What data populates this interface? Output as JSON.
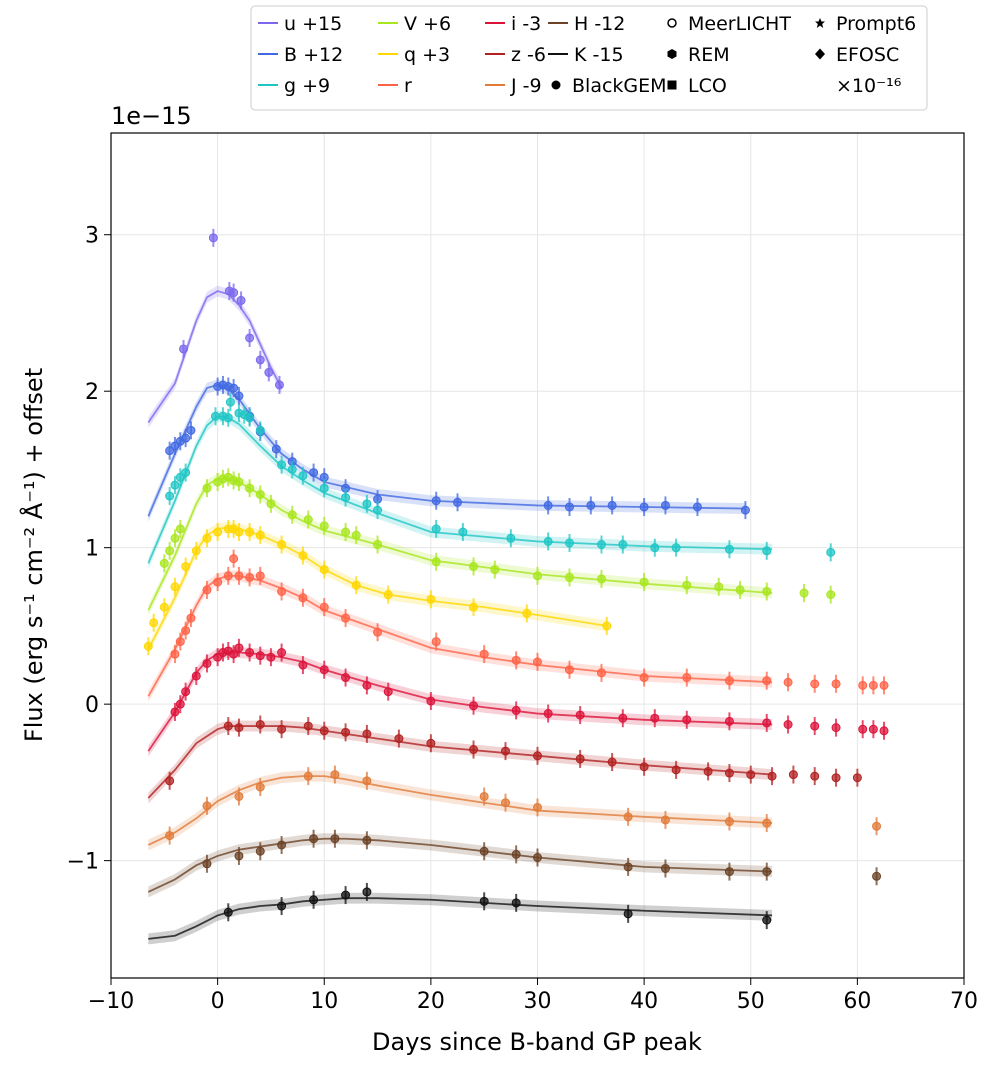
{
  "chart_data": {
    "type": "scatter",
    "title": "",
    "xlabel": "Days since B-band GP peak",
    "ylabel": "Flux (erg s⁻¹ cm⁻² Å⁻¹) + offset",
    "y_multiplier": "1e−15",
    "xlim": [
      -10,
      70
    ],
    "ylim": [
      -1.75,
      3.65
    ],
    "xticks": [
      -10,
      0,
      10,
      20,
      30,
      40,
      50,
      60,
      70
    ],
    "yticks": [
      -1,
      0,
      1,
      2,
      3
    ],
    "xtick_labels": [
      "−10",
      "0",
      "10",
      "20",
      "30",
      "40",
      "50",
      "60",
      "70"
    ],
    "ytick_labels": [
      "−1",
      "0",
      "1",
      "2",
      "3"
    ],
    "grid": true,
    "legend_position": "top-center",
    "series": [
      {
        "name": "u +15",
        "color": "#7b68ee",
        "model_x": [
          -6.5,
          -4,
          -2,
          -1,
          0,
          1,
          2,
          3,
          4,
          5,
          6
        ],
        "model_y": [
          1.8,
          2.05,
          2.45,
          2.6,
          2.64,
          2.62,
          2.55,
          2.45,
          2.3,
          2.15,
          2.02
        ],
        "x": [
          -0.4,
          -3.2,
          1.1,
          1.5,
          2.2,
          3.0,
          4.0,
          4.8,
          5.8
        ],
        "y": [
          2.98,
          2.27,
          2.64,
          2.63,
          2.58,
          2.34,
          2.2,
          2.12,
          2.04
        ]
      },
      {
        "name": "B +12",
        "color": "#4169e1",
        "model_x": [
          -6.5,
          -4,
          -2,
          -1,
          0,
          1,
          2,
          4,
          6,
          8,
          10,
          15,
          20,
          30,
          40,
          49.5
        ],
        "model_y": [
          1.2,
          1.6,
          1.9,
          2.02,
          2.04,
          2.01,
          1.95,
          1.76,
          1.6,
          1.5,
          1.42,
          1.34,
          1.3,
          1.27,
          1.26,
          1.25
        ],
        "x": [
          -4.5,
          -4,
          -3.5,
          -3,
          -2.5,
          0,
          0.5,
          1,
          1.5,
          2,
          3,
          4,
          5.5,
          7,
          9,
          10,
          12,
          15,
          20.5,
          22.5,
          31,
          33,
          35,
          37,
          40,
          42,
          45,
          49.5
        ],
        "y": [
          1.62,
          1.65,
          1.68,
          1.7,
          1.75,
          2.03,
          2.04,
          2.03,
          2.02,
          1.97,
          1.84,
          1.74,
          1.63,
          1.55,
          1.48,
          1.45,
          1.38,
          1.31,
          1.3,
          1.29,
          1.27,
          1.26,
          1.27,
          1.27,
          1.26,
          1.27,
          1.26,
          1.24
        ]
      },
      {
        "name": "g +9",
        "color": "#20c5c5",
        "model_x": [
          -6.5,
          -4,
          -2,
          -1,
          0,
          1,
          2,
          4,
          6,
          8,
          10,
          15,
          20,
          30,
          40,
          52
        ],
        "model_y": [
          0.9,
          1.3,
          1.65,
          1.78,
          1.84,
          1.83,
          1.79,
          1.65,
          1.52,
          1.43,
          1.35,
          1.22,
          1.1,
          1.04,
          1.01,
          0.99
        ],
        "x": [
          -4.5,
          -4,
          -3.5,
          -3,
          -0.2,
          0.5,
          1,
          1.2,
          2,
          2.5,
          3,
          4,
          6,
          7,
          8,
          10,
          12,
          14,
          15,
          20.5,
          23,
          27.5,
          31,
          33,
          36,
          38,
          41,
          43,
          48,
          51.5,
          57.5
        ],
        "y": [
          1.33,
          1.4,
          1.45,
          1.48,
          1.84,
          1.84,
          1.83,
          1.93,
          1.86,
          1.85,
          1.83,
          1.75,
          1.53,
          1.5,
          1.46,
          1.38,
          1.32,
          1.28,
          1.24,
          1.12,
          1.1,
          1.06,
          1.04,
          1.03,
          1.02,
          1.02,
          1.0,
          1.0,
          0.99,
          0.98,
          0.97
        ]
      },
      {
        "name": "V +6",
        "color": "#a8e61d",
        "model_x": [
          -6.5,
          -4,
          -2,
          -1,
          0,
          1,
          2,
          4,
          6,
          8,
          10,
          15,
          20,
          30,
          40,
          52
        ],
        "model_y": [
          0.6,
          0.95,
          1.28,
          1.4,
          1.44,
          1.44,
          1.42,
          1.34,
          1.24,
          1.17,
          1.11,
          1.02,
          0.92,
          0.83,
          0.77,
          0.71
        ],
        "x": [
          -5,
          -4.5,
          -4,
          -3.5,
          -1,
          0,
          0.5,
          1,
          1.5,
          2,
          3,
          4,
          5,
          7,
          8.5,
          10,
          12,
          13,
          15,
          20.5,
          24,
          26,
          30,
          33,
          36,
          40,
          44,
          47,
          49,
          51.5,
          55,
          57.5
        ],
        "y": [
          0.9,
          0.98,
          1.06,
          1.12,
          1.38,
          1.42,
          1.44,
          1.45,
          1.43,
          1.42,
          1.38,
          1.34,
          1.28,
          1.21,
          1.18,
          1.14,
          1.1,
          1.08,
          1.02,
          0.91,
          0.88,
          0.86,
          0.82,
          0.81,
          0.8,
          0.78,
          0.76,
          0.75,
          0.73,
          0.72,
          0.71,
          0.7
        ]
      },
      {
        "name": "q +3",
        "color": "#ffd700",
        "model_x": [
          -6.5,
          -4,
          -2,
          -1,
          0,
          1,
          2,
          4,
          6,
          8,
          10,
          13,
          16,
          20,
          25,
          30,
          36.5
        ],
        "model_y": [
          0.35,
          0.68,
          0.98,
          1.08,
          1.12,
          1.13,
          1.12,
          1.08,
          1.02,
          0.95,
          0.86,
          0.76,
          0.7,
          0.66,
          0.62,
          0.57,
          0.5
        ],
        "x": [
          -6.5,
          -6,
          -5,
          -4,
          -3,
          -2,
          -1,
          0,
          1,
          1.5,
          2,
          3,
          4,
          6,
          8,
          10,
          13,
          16,
          20,
          24,
          29,
          36.5
        ],
        "y": [
          0.37,
          0.52,
          0.62,
          0.75,
          0.88,
          0.98,
          1.06,
          1.1,
          1.12,
          1.12,
          1.1,
          1.1,
          1.08,
          1.02,
          0.95,
          0.86,
          0.76,
          0.7,
          0.67,
          0.62,
          0.58,
          0.5
        ]
      },
      {
        "name": "r",
        "color": "#ff6347",
        "model_x": [
          -6.5,
          -4,
          -2,
          -1,
          0,
          1,
          2,
          4,
          6,
          8,
          10,
          15,
          20,
          25,
          30,
          40,
          52
        ],
        "model_y": [
          0.05,
          0.35,
          0.63,
          0.75,
          0.8,
          0.82,
          0.82,
          0.79,
          0.74,
          0.68,
          0.6,
          0.48,
          0.36,
          0.3,
          0.25,
          0.18,
          0.14
        ],
        "x": [
          -4,
          -3.5,
          -3,
          -2.5,
          -1,
          0,
          1,
          1.5,
          2,
          3,
          4,
          6,
          8,
          10,
          12,
          15,
          20.5,
          25,
          28,
          30,
          33,
          36,
          40,
          44,
          48,
          51.5,
          53.5,
          56,
          58,
          60.5,
          61.5,
          62.5
        ],
        "y": [
          0.32,
          0.4,
          0.47,
          0.55,
          0.73,
          0.78,
          0.82,
          0.93,
          0.82,
          0.81,
          0.82,
          0.72,
          0.68,
          0.62,
          0.55,
          0.46,
          0.4,
          0.32,
          0.28,
          0.27,
          0.22,
          0.2,
          0.17,
          0.17,
          0.15,
          0.15,
          0.14,
          0.13,
          0.13,
          0.12,
          0.12,
          0.12
        ]
      },
      {
        "name": "i -3",
        "color": "#dc143c",
        "model_x": [
          -6.5,
          -4,
          -2,
          -1,
          0,
          1,
          2,
          4,
          6,
          8,
          10,
          15,
          20,
          25,
          30,
          40,
          52
        ],
        "model_y": [
          -0.3,
          -0.05,
          0.2,
          0.28,
          0.32,
          0.33,
          0.33,
          0.32,
          0.3,
          0.27,
          0.22,
          0.12,
          0.03,
          -0.02,
          -0.06,
          -0.1,
          -0.13
        ],
        "x": [
          -4,
          -3.5,
          -3,
          -2,
          -1,
          0,
          0.5,
          1,
          1.5,
          2,
          3,
          4,
          5,
          6,
          8,
          10,
          12,
          14,
          16,
          20,
          24,
          28,
          31,
          34,
          38,
          41,
          44,
          48,
          51.5,
          53.5,
          56,
          58,
          60.5,
          61.5,
          62.5
        ],
        "y": [
          -0.05,
          0.0,
          0.08,
          0.18,
          0.26,
          0.3,
          0.33,
          0.34,
          0.32,
          0.36,
          0.33,
          0.31,
          0.3,
          0.33,
          0.25,
          0.22,
          0.17,
          0.12,
          0.08,
          0.02,
          -0.01,
          -0.04,
          -0.06,
          -0.07,
          -0.09,
          -0.09,
          -0.1,
          -0.11,
          -0.12,
          -0.13,
          -0.14,
          -0.15,
          -0.16,
          -0.16,
          -0.17
        ]
      },
      {
        "name": "z -6",
        "color": "#b22222",
        "model_x": [
          -6.5,
          -4,
          -2,
          0,
          1,
          2,
          4,
          6,
          8,
          10,
          15,
          20,
          30,
          40,
          52
        ],
        "model_y": [
          -0.6,
          -0.42,
          -0.25,
          -0.16,
          -0.14,
          -0.14,
          -0.14,
          -0.14,
          -0.15,
          -0.17,
          -0.22,
          -0.27,
          -0.33,
          -0.39,
          -0.45
        ],
        "x": [
          -4.5,
          1,
          2,
          4,
          6,
          8.5,
          10,
          12,
          14,
          17,
          20,
          24,
          27,
          30,
          34,
          37,
          40,
          43,
          46,
          48,
          50,
          52,
          54,
          56,
          58,
          60
        ],
        "y": [
          -0.49,
          -0.14,
          -0.15,
          -0.13,
          -0.16,
          -0.14,
          -0.17,
          -0.18,
          -0.19,
          -0.22,
          -0.25,
          -0.29,
          -0.3,
          -0.33,
          -0.35,
          -0.37,
          -0.4,
          -0.42,
          -0.43,
          -0.44,
          -0.45,
          -0.46,
          -0.45,
          -0.46,
          -0.47,
          -0.47
        ]
      },
      {
        "name": "J -9",
        "color": "#e07b39",
        "model_x": [
          -6.5,
          -4,
          -2,
          0,
          2,
          4,
          6,
          8,
          10,
          12,
          15,
          20,
          25,
          30,
          40,
          52
        ],
        "model_y": [
          -0.9,
          -0.82,
          -0.73,
          -0.62,
          -0.55,
          -0.5,
          -0.47,
          -0.46,
          -0.46,
          -0.48,
          -0.52,
          -0.58,
          -0.63,
          -0.68,
          -0.72,
          -0.76
        ],
        "x": [
          -4.5,
          -1,
          2,
          4,
          8.5,
          11,
          14,
          25,
          27,
          30,
          38.5,
          42,
          48,
          51.5,
          61.8
        ],
        "y": [
          -0.84,
          -0.65,
          -0.59,
          -0.53,
          -0.46,
          -0.45,
          -0.49,
          -0.59,
          -0.63,
          -0.66,
          -0.72,
          -0.74,
          -0.75,
          -0.76,
          -0.78
        ]
      },
      {
        "name": "H -12",
        "color": "#6b4226",
        "model_x": [
          -6.5,
          -4,
          -2,
          0,
          2,
          4,
          6,
          8,
          10,
          12,
          15,
          20,
          25,
          30,
          40,
          52
        ],
        "model_y": [
          -1.2,
          -1.12,
          -1.03,
          -0.97,
          -0.93,
          -0.91,
          -0.89,
          -0.87,
          -0.86,
          -0.86,
          -0.87,
          -0.9,
          -0.94,
          -0.98,
          -1.04,
          -1.07
        ],
        "x": [
          -1,
          2,
          4,
          6,
          9,
          11,
          14,
          25,
          28,
          30,
          38.5,
          42,
          48,
          51.5,
          61.8
        ],
        "y": [
          -1.02,
          -0.97,
          -0.94,
          -0.9,
          -0.86,
          -0.86,
          -0.87,
          -0.94,
          -0.96,
          -0.98,
          -1.04,
          -1.05,
          -1.07,
          -1.07,
          -1.1
        ]
      },
      {
        "name": "K -15",
        "color": "#111111",
        "model_x": [
          -6.5,
          -4,
          -2,
          0,
          2,
          4,
          6,
          8,
          10,
          12,
          15,
          20,
          25,
          30,
          40,
          52
        ],
        "model_y": [
          -1.5,
          -1.48,
          -1.42,
          -1.35,
          -1.31,
          -1.29,
          -1.28,
          -1.26,
          -1.25,
          -1.24,
          -1.24,
          -1.25,
          -1.27,
          -1.29,
          -1.32,
          -1.35
        ],
        "x": [
          1,
          6,
          9,
          12,
          14,
          25,
          28,
          38.5,
          51.5
        ],
        "y": [
          -1.33,
          -1.29,
          -1.25,
          -1.22,
          -1.2,
          -1.26,
          -1.27,
          -1.34,
          -1.38
        ]
      }
    ],
    "legend": {
      "col1": [
        "u +15",
        "B +12",
        "g +9"
      ],
      "col2": [
        "V +6",
        "q +3",
        "r"
      ],
      "col3": [
        "i -3",
        "z -6",
        "J -9"
      ],
      "col4": [
        "H -12",
        "K -15",
        "BlackGEM"
      ],
      "col5": [
        "MeerLICHT",
        "REM",
        "LCO"
      ],
      "col6": [
        "Prompt6",
        "EFOSC",
        "×10⁻¹⁶"
      ]
    }
  }
}
